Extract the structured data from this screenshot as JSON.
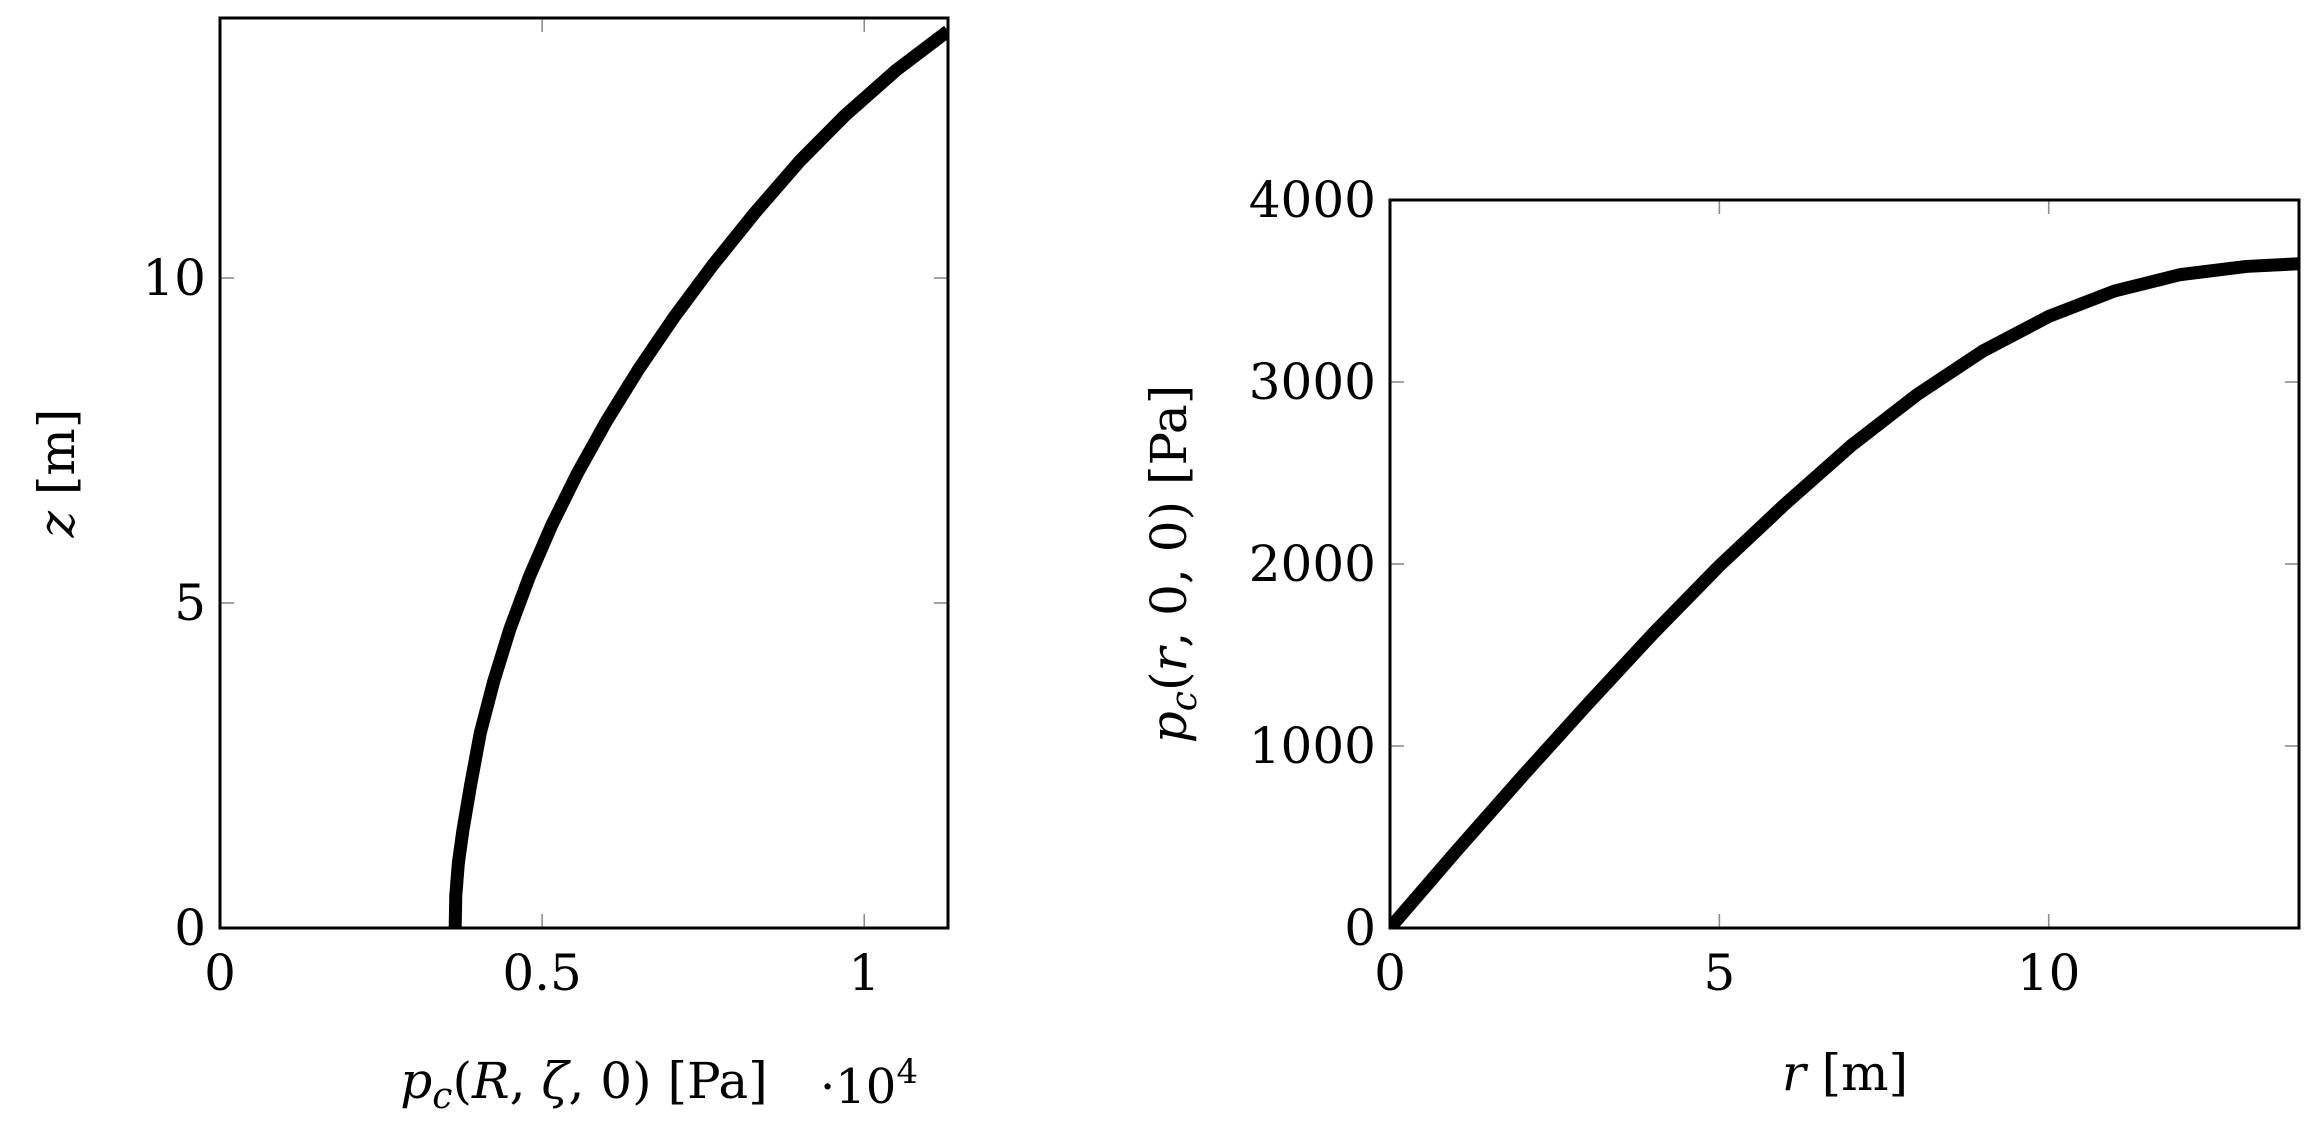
{
  "chart_data": [
    {
      "type": "line",
      "title": "",
      "xlabel": "p_c(R, ζ, 0) [Pa]",
      "xlabel_parts": [
        {
          "text": "p",
          "italic": true
        },
        {
          "text": "c",
          "italic": true,
          "sub": true
        },
        {
          "text": "(",
          "italic": false
        },
        {
          "text": "R",
          "italic": true
        },
        {
          "text": ", ",
          "italic": false
        },
        {
          "text": "ζ",
          "italic": true
        },
        {
          "text": ", 0) [Pa]",
          "italic": false
        }
      ],
      "ylabel": "z [m]",
      "ylabel_parts": [
        {
          "text": "z",
          "italic": true
        },
        {
          "text": " [m]",
          "italic": false
        }
      ],
      "x_multiplier": "·10",
      "x_multiplier_exp": "4",
      "xlim": [
        0,
        1.13
      ],
      "ylim": [
        0,
        14.0
      ],
      "x_ticks": [
        0,
        0.5,
        1
      ],
      "x_tick_labels": [
        "0",
        "0.5",
        "1"
      ],
      "y_ticks": [
        0,
        5,
        10
      ],
      "y_tick_labels": [
        "0",
        "5",
        "10"
      ],
      "grid": false,
      "series": [
        {
          "color": "#000000",
          "x": [
            0.365,
            0.366,
            0.37,
            0.377,
            0.389,
            0.404,
            0.425,
            0.45,
            0.48,
            0.515,
            0.555,
            0.6,
            0.65,
            0.705,
            0.765,
            0.83,
            0.9,
            0.97,
            1.05,
            1.13
          ],
          "y": [
            0.0,
            0.5,
            1.0,
            1.5,
            2.2,
            3.0,
            3.8,
            4.6,
            5.4,
            6.2,
            7.0,
            7.8,
            8.6,
            9.4,
            10.2,
            11.0,
            11.8,
            12.5,
            13.2,
            13.8
          ]
        }
      ]
    },
    {
      "type": "line",
      "title": "",
      "xlabel": "r [m]",
      "xlabel_parts": [
        {
          "text": "r",
          "italic": true
        },
        {
          "text": " [m]",
          "italic": false
        }
      ],
      "ylabel": "p_c(r, 0, 0) [Pa]",
      "ylabel_parts": [
        {
          "text": "p",
          "italic": true
        },
        {
          "text": "c",
          "italic": true,
          "sub": true
        },
        {
          "text": "(",
          "italic": false
        },
        {
          "text": "r",
          "italic": true
        },
        {
          "text": ", 0, 0) [Pa]",
          "italic": false
        }
      ],
      "xlim": [
        0,
        13.8
      ],
      "ylim": [
        0,
        4000
      ],
      "x_ticks": [
        0,
        5,
        10
      ],
      "x_tick_labels": [
        "0",
        "5",
        "10"
      ],
      "y_ticks": [
        0,
        1000,
        2000,
        3000,
        4000
      ],
      "y_tick_labels": [
        "0",
        "1000",
        "2000",
        "3000",
        "4000"
      ],
      "grid": false,
      "series": [
        {
          "color": "#000000",
          "x": [
            0,
            1,
            2,
            3,
            4,
            5,
            6,
            7,
            8,
            9,
            10,
            11,
            12,
            13,
            13.8
          ],
          "y": [
            0,
            420,
            830,
            1230,
            1620,
            1990,
            2330,
            2650,
            2930,
            3170,
            3360,
            3500,
            3590,
            3635,
            3650
          ]
        }
      ]
    }
  ]
}
